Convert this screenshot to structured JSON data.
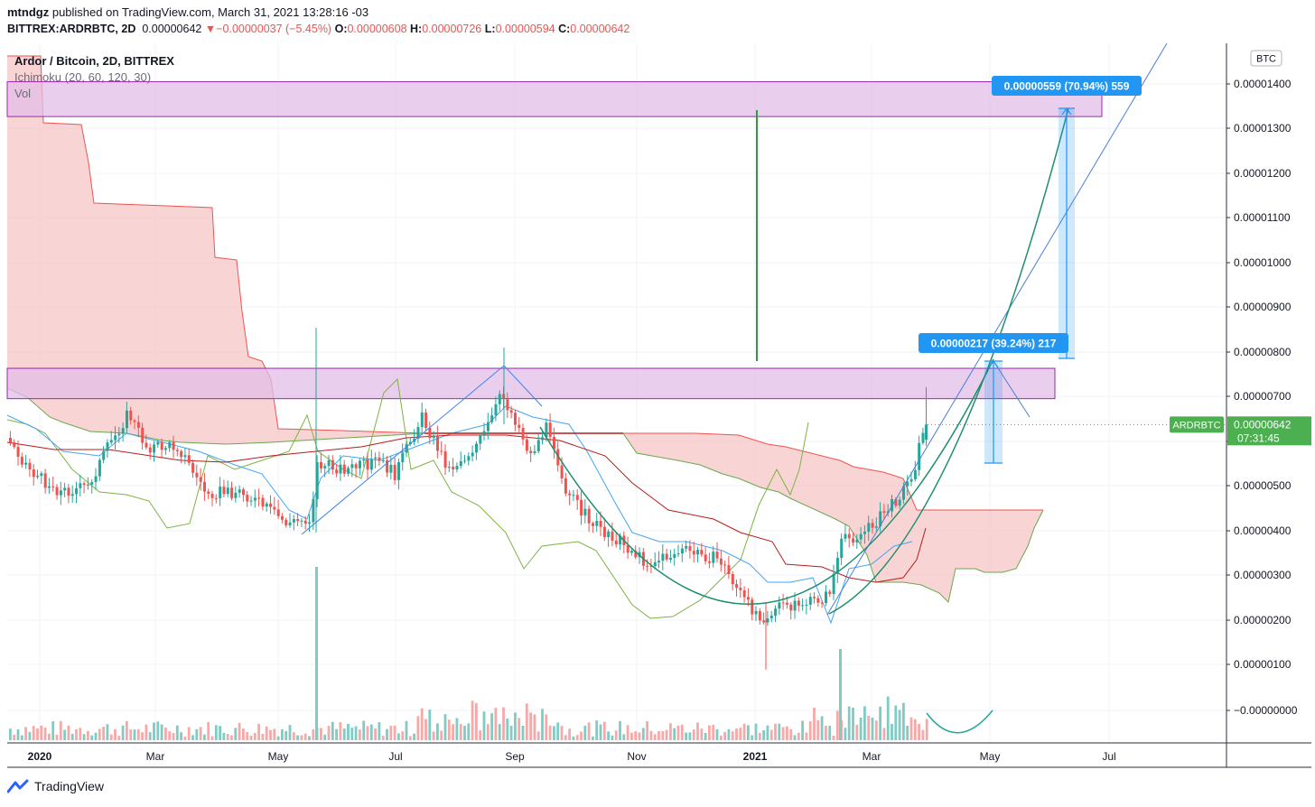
{
  "header": {
    "author": "mtndgz",
    "published_text": "published on TradingView.com, March 31, 2021 13:28:16 -03"
  },
  "ohlc_bar": {
    "symbol": "BITTREX:ARDRBTC, 2D",
    "last": "0.00000642",
    "change_arrow": "▼",
    "change": "−0.00000037 (−5.45%)",
    "o_label": "O:",
    "o": "0.00000608",
    "h_label": "H:",
    "h": "0.00000726",
    "l_label": "L:",
    "l": "0.00000594",
    "c_label": "C:",
    "c": "0.00000642"
  },
  "legend": {
    "title": "Ardor / Bitcoin, 2D, BITTREX",
    "ichimoku": "Ichimoku (20, 60, 120, 30)",
    "vol": "Vol"
  },
  "axis": {
    "currency_button": "BTC",
    "price_ticks": [
      "0.00001400",
      "0.00001300",
      "0.00001200",
      "0.00001100",
      "0.00001000",
      "0.00000900",
      "0.00000800",
      "0.00000700",
      "0.00000600",
      "0.00000500",
      "0.00000400",
      "0.00000300",
      "0.00000200",
      "0.00000100",
      "−0.00000000"
    ],
    "time_ticks": [
      "2020",
      "Mar",
      "May",
      "Jul",
      "Sep",
      "Nov",
      "2021",
      "Mar",
      "May",
      "Jul"
    ]
  },
  "price_tag": {
    "symbol": "ARDRBTC",
    "value": "0.00000642",
    "countdown": "07:31:45"
  },
  "measures": [
    {
      "text": "0.00000559 (70.94%) 559"
    },
    {
      "text": "0.00000217 (39.24%) 217"
    }
  ],
  "zones": [
    {
      "top": 1.41e-05,
      "bottom": 1.332e-05
    },
    {
      "top": 7.68e-06,
      "bottom": 7e-06
    }
  ],
  "colors": {
    "up": "#26a69a",
    "down": "#ef5350",
    "zone_fill": "#e1bee7",
    "zone_border": "#9c27b0",
    "measure": "#2196f3",
    "kumo": "#f7c6c6",
    "chikou": "#43a047",
    "tenkan": "#2196f3",
    "kijun": "#b71c1c",
    "drawing": "#1e8f6e",
    "tag_green": "#4caf50"
  },
  "chart_data": {
    "type": "candlestick",
    "symbol": "ARDRBTC",
    "interval": "2D",
    "last_candle": {
      "open": 6.08e-06,
      "high": 7.26e-06,
      "low": 5.94e-06,
      "close": 6.42e-06
    },
    "y_range": [
      -3e-07,
      1.48e-05
    ],
    "x_range": [
      "2019-12-21",
      "2021-08-20"
    ],
    "scale": "linear"
  },
  "branding": {
    "name": "TradingView"
  }
}
